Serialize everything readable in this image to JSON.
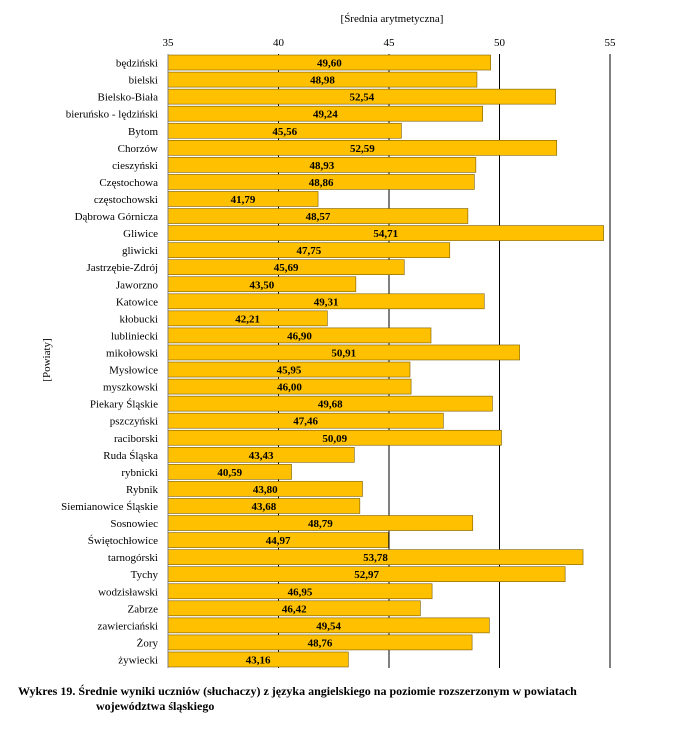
{
  "chart_data": {
    "type": "bar",
    "orientation": "horizontal",
    "x_axis_title": "[Średnia arytmetyczna]",
    "y_axis_title": "[Powiaty]",
    "xlim": [
      35,
      55
    ],
    "xticks": [
      35,
      40,
      45,
      50,
      55
    ],
    "grid": "vertical",
    "bar_color": "#FFC000",
    "categories": [
      "będziński",
      "bielski",
      "Bielsko-Biała",
      "bieruńsko - lędziński",
      "Bytom",
      "Chorzów",
      "cieszyński",
      "Częstochowa",
      "częstochowski",
      "Dąbrowa Górnicza",
      "Gliwice",
      "gliwicki",
      "Jastrzębie-Zdrój",
      "Jaworzno",
      "Katowice",
      "kłobucki",
      "lubliniecki",
      "mikołowski",
      "Mysłowice",
      "myszkowski",
      "Piekary Śląskie",
      "pszczyński",
      "raciborski",
      "Ruda Śląska",
      "rybnicki",
      "Rybnik",
      "Siemianowice Śląskie",
      "Sosnowiec",
      "Świętochłowice",
      "tarnogórski",
      "Tychy",
      "wodzisławski",
      "Zabrze",
      "zawierciański",
      "Żory",
      "żywiecki"
    ],
    "values": [
      49.6,
      48.98,
      52.54,
      49.24,
      45.56,
      52.59,
      48.93,
      48.86,
      41.79,
      48.57,
      54.71,
      47.75,
      45.69,
      43.5,
      49.31,
      42.21,
      46.9,
      50.91,
      45.95,
      46.0,
      49.68,
      47.46,
      50.09,
      43.43,
      40.59,
      43.8,
      43.68,
      48.79,
      44.97,
      53.78,
      52.97,
      46.95,
      46.42,
      49.54,
      48.76,
      43.16
    ],
    "value_labels": [
      "49,60",
      "48,98",
      "52,54",
      "49,24",
      "45,56",
      "52,59",
      "48,93",
      "48,86",
      "41,79",
      "48,57",
      "54,71",
      "47,75",
      "45,69",
      "43,50",
      "49,31",
      "42,21",
      "46,90",
      "50,91",
      "45,95",
      "46,00",
      "49,68",
      "47,46",
      "50,09",
      "43,43",
      "40,59",
      "43,80",
      "43,68",
      "48,79",
      "44,97",
      "53,78",
      "52,97",
      "46,95",
      "46,42",
      "49,54",
      "48,76",
      "43,16"
    ]
  },
  "caption": {
    "line1": "Wykres 19. Średnie wyniki uczniów (słuchaczy) z języka angielskiego na poziomie rozszerzonym w powiatach",
    "line2": "województwa śląskiego"
  }
}
